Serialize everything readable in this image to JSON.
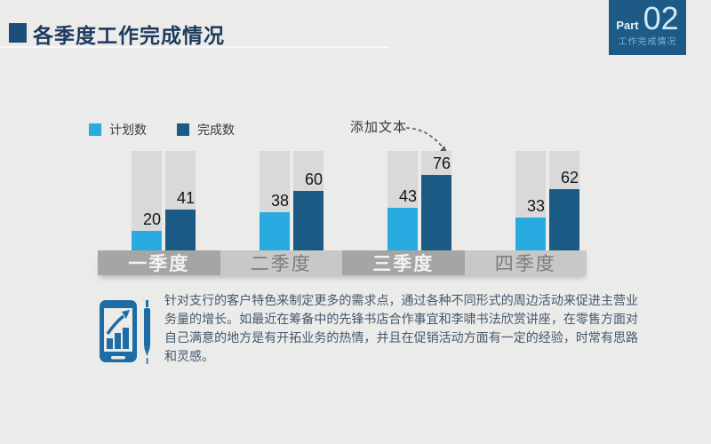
{
  "header": {
    "title": "各季度工作完成情况",
    "part_label": "Part",
    "part_number": "02",
    "part_subtitle": "工作完成情况"
  },
  "annotation": {
    "text": "添加文本"
  },
  "chart_data": {
    "type": "bar",
    "categories": [
      "一季度",
      "二季度",
      "三季度",
      "四季度"
    ],
    "series": [
      {
        "name": "计划数",
        "color": "#29abe2",
        "values": [
          20,
          38,
          43,
          33
        ]
      },
      {
        "name": "完成数",
        "color": "#1b5a84",
        "values": [
          41,
          60,
          76,
          62
        ]
      }
    ],
    "ylim": [
      0,
      100
    ],
    "legend_position": "top-left",
    "value_labels": true,
    "track_color": "#d9d9d9",
    "annotation": "添加文本"
  },
  "body": {
    "paragraph": "针对支行的客户特色来制定更多的需求点，通过各种不同形式的周边活动来促进主营业务量的增长。如最近在筹备中的先锋书店合作事宜和李啸书法欣赏讲座，在零售方面对自己满意的地方是有开拓业务的热情，并且在促销活动方面有一定的经验，时常有思路和灵感。"
  },
  "colors": {
    "background": "#ebebe9",
    "accent_light_blue": "#29abe2",
    "accent_dark_blue": "#1b5a84",
    "part_box_blue": "#1d5a85",
    "title_text": "#1e3a5f",
    "icon_blue": "#1e6ca6"
  }
}
